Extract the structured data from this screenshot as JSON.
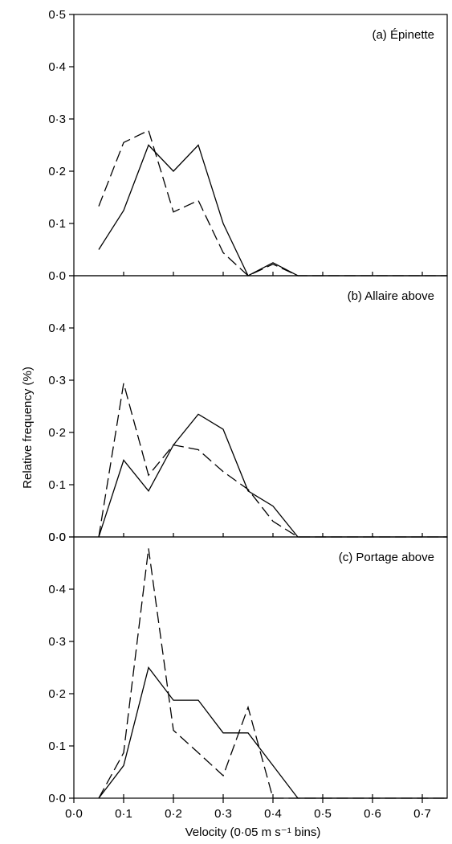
{
  "chart_data": {
    "type": "line",
    "xlabel": "Velocity (0·05 m s⁻¹ bins)",
    "ylabel": "Relative frequency (%)",
    "x_ticks": [
      "0·0",
      "0·1",
      "0·2",
      "0·3",
      "0·4",
      "0·5",
      "0·6",
      "0·7"
    ],
    "xlim": [
      0,
      0.75
    ],
    "panels": [
      {
        "label": "(a) Épinette",
        "ylim": [
          0,
          0.5
        ],
        "y_ticks": [
          "0·0",
          "0·1",
          "0·2",
          "0·3",
          "0·4",
          "0·5"
        ],
        "series": [
          {
            "style": "solid",
            "x": [
              0.05,
              0.1,
              0.15,
              0.2,
              0.25,
              0.3,
              0.35,
              0.4,
              0.45,
              0.75
            ],
            "y": [
              0.05,
              0.125,
              0.25,
              0.2,
              0.25,
              0.1,
              0.0,
              0.025,
              0.0,
              0.0
            ]
          },
          {
            "style": "dashed",
            "x": [
              0.05,
              0.1,
              0.15,
              0.2,
              0.25,
              0.3,
              0.35,
              0.4,
              0.45,
              0.75
            ],
            "y": [
              0.133,
              0.255,
              0.278,
              0.122,
              0.144,
              0.044,
              0.0,
              0.022,
              0.0,
              0.0
            ]
          }
        ]
      },
      {
        "label": "(b) Allaire above",
        "ylim": [
          0,
          0.5
        ],
        "y_ticks": [
          "0·0",
          "0·1",
          "0·2",
          "0·3",
          "0·4",
          ""
        ],
        "series": [
          {
            "style": "solid",
            "x": [
              0.05,
              0.1,
              0.15,
              0.2,
              0.25,
              0.3,
              0.35,
              0.4,
              0.45,
              0.75
            ],
            "y": [
              0.0,
              0.147,
              0.088,
              0.176,
              0.235,
              0.206,
              0.088,
              0.059,
              0.0,
              0.0
            ]
          },
          {
            "style": "dashed",
            "x": [
              0.05,
              0.1,
              0.15,
              0.2,
              0.25,
              0.3,
              0.35,
              0.4,
              0.45,
              0.75
            ],
            "y": [
              0.0,
              0.294,
              0.118,
              0.176,
              0.167,
              0.125,
              0.091,
              0.03,
              0.0,
              0.0
            ]
          }
        ]
      },
      {
        "label": "(c) Portage above",
        "ylim": [
          0,
          0.5
        ],
        "y_ticks": [
          "0·0",
          "0·1",
          "0·2",
          "0·3",
          "0·4",
          "0·0"
        ],
        "series": [
          {
            "style": "solid",
            "x": [
              0.05,
              0.1,
              0.15,
              0.2,
              0.25,
              0.3,
              0.35,
              0.4,
              0.45,
              0.75
            ],
            "y": [
              0.0,
              0.0625,
              0.25,
              0.1875,
              0.1875,
              0.125,
              0.125,
              0.0625,
              0.0,
              0.0
            ]
          },
          {
            "style": "dashed",
            "x": [
              0.05,
              0.1,
              0.15,
              0.2,
              0.25,
              0.3,
              0.35,
              0.4,
              0.45,
              0.75
            ],
            "y": [
              0.0,
              0.087,
              0.478,
              0.13,
              0.087,
              0.043,
              0.174,
              0.0,
              0.0,
              0.0
            ]
          }
        ]
      }
    ]
  }
}
